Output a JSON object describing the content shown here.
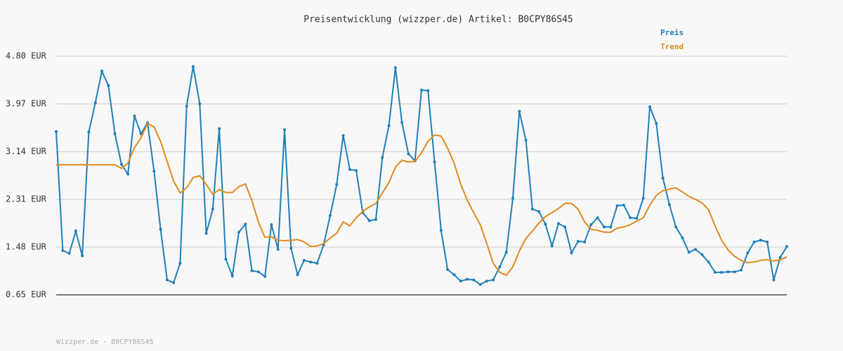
{
  "chart_data": {
    "type": "line",
    "title": "Preisentwicklung (wizzper.de) Artikel: B0CPY86S45",
    "footer": "Wizzper.de - B0CPY86S45",
    "ylim": [
      0.65,
      4.8
    ],
    "yticks": [
      {
        "value": 0.65,
        "label": "0.65 EUR"
      },
      {
        "value": 1.48,
        "label": "1.48 EUR"
      },
      {
        "value": 2.31,
        "label": "2.31 EUR"
      },
      {
        "value": 3.14,
        "label": "3.14 EUR"
      },
      {
        "value": 3.97,
        "label": "3.97 EUR"
      },
      {
        "value": 4.8,
        "label": "4.80 EUR"
      }
    ],
    "grid": true,
    "legend": "top-right",
    "series": [
      {
        "name": "Preis",
        "color": "#1f7fb8",
        "markers": true,
        "values": [
          3.49,
          1.42,
          1.37,
          1.76,
          1.33,
          3.48,
          3.99,
          4.54,
          4.29,
          3.45,
          2.92,
          2.75,
          3.76,
          3.45,
          3.64,
          2.8,
          1.79,
          0.91,
          0.86,
          1.2,
          3.93,
          4.62,
          3.97,
          1.72,
          2.14,
          3.54,
          1.27,
          0.98,
          1.74,
          1.88,
          1.07,
          1.05,
          0.97,
          1.87,
          1.44,
          3.52,
          1.46,
          1.0,
          1.25,
          1.22,
          1.2,
          1.52,
          2.03,
          2.57,
          3.42,
          2.83,
          2.81,
          2.08,
          1.94,
          1.96,
          3.04,
          3.59,
          4.6,
          3.65,
          3.1,
          2.98,
          4.21,
          4.2,
          2.96,
          1.77,
          1.09,
          1.0,
          0.89,
          0.92,
          0.91,
          0.83,
          0.89,
          0.91,
          1.14,
          1.39,
          2.33,
          3.84,
          3.34,
          2.14,
          2.1,
          1.88,
          1.5,
          1.89,
          1.83,
          1.38,
          1.58,
          1.57,
          1.87,
          1.99,
          1.83,
          1.83,
          2.2,
          2.21,
          1.99,
          1.98,
          2.33,
          3.92,
          3.63,
          2.68,
          2.22,
          1.83,
          1.64,
          1.39,
          1.44,
          1.35,
          1.22,
          1.04,
          1.04,
          1.05,
          1.05,
          1.08,
          1.38,
          1.57,
          1.6,
          1.57,
          0.91,
          1.3,
          1.49
        ]
      },
      {
        "name": "Trend",
        "color": "#e08a1e",
        "markers": false,
        "values": [
          2.91,
          2.91,
          2.91,
          2.91,
          2.91,
          2.91,
          2.91,
          2.91,
          2.91,
          2.91,
          2.85,
          2.94,
          3.21,
          3.38,
          3.63,
          3.57,
          3.32,
          2.97,
          2.63,
          2.42,
          2.51,
          2.69,
          2.72,
          2.57,
          2.4,
          2.48,
          2.43,
          2.43,
          2.53,
          2.58,
          2.29,
          1.91,
          1.65,
          1.66,
          1.6,
          1.59,
          1.6,
          1.61,
          1.57,
          1.49,
          1.5,
          1.54,
          1.64,
          1.72,
          1.92,
          1.85,
          1.99,
          2.1,
          2.18,
          2.24,
          2.42,
          2.6,
          2.87,
          2.99,
          2.96,
          2.97,
          3.12,
          3.32,
          3.43,
          3.41,
          3.2,
          2.94,
          2.58,
          2.3,
          2.08,
          1.87,
          1.54,
          1.2,
          1.04,
          0.99,
          1.14,
          1.41,
          1.63,
          1.76,
          1.9,
          2.01,
          2.08,
          2.15,
          2.24,
          2.24,
          2.14,
          1.92,
          1.79,
          1.77,
          1.74,
          1.74,
          1.81,
          1.83,
          1.87,
          1.93,
          1.99,
          2.21,
          2.38,
          2.46,
          2.49,
          2.51,
          2.44,
          2.36,
          2.31,
          2.25,
          2.13,
          1.85,
          1.6,
          1.43,
          1.32,
          1.25,
          1.21,
          1.22,
          1.25,
          1.26,
          1.24,
          1.26,
          1.31
        ]
      }
    ]
  }
}
